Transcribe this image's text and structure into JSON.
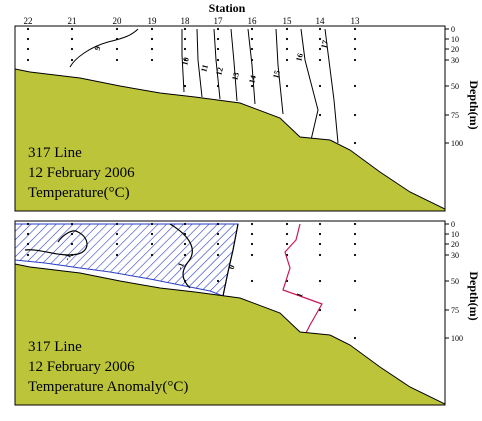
{
  "header": {
    "title": "Station"
  },
  "stations": [
    "22",
    "21",
    "20",
    "19",
    "18",
    "17",
    "16",
    "15",
    "14",
    "13"
  ],
  "depth_axis": {
    "label": "Depth(m)",
    "ticks": [
      "0",
      "10",
      "20",
      "30",
      "50",
      "75",
      "100"
    ],
    "range": [
      0,
      120
    ]
  },
  "colors": {
    "seabed": "#bcc43a",
    "negative_hatch": "#2a3fc4",
    "positive_contour": "#c8185a",
    "contour": "#000000",
    "frame": "#000000"
  },
  "panels": [
    {
      "id": "temperature",
      "line_label": "317 Line",
      "date_label": "12 February 2006",
      "variable_label": "Temperature(°C)",
      "chart_data": {
        "type": "contour",
        "variable": "Temperature",
        "unit": "°C",
        "x_categories": [
          "22",
          "21",
          "20",
          "19",
          "18",
          "17",
          "16",
          "15",
          "14",
          "13"
        ],
        "ylim": [
          0,
          120
        ],
        "contour_levels": [
          "9",
          "10",
          "11",
          "12",
          "13",
          "14",
          "15",
          "16",
          "17"
        ]
      }
    },
    {
      "id": "anomaly",
      "line_label": "317 Line",
      "date_label": "12 February 2006",
      "variable_label": "Temperature Anomaly(°C)",
      "chart_data": {
        "type": "contour",
        "variable": "Temperature Anomaly",
        "unit": "°C",
        "x_categories": [
          "22",
          "21",
          "20",
          "19",
          "18",
          "17",
          "16",
          "15",
          "14",
          "13"
        ],
        "ylim": [
          0,
          120
        ],
        "contour_levels": [
          "-1",
          "-1",
          "0",
          "1"
        ],
        "negative_region_hatched": true
      }
    }
  ]
}
